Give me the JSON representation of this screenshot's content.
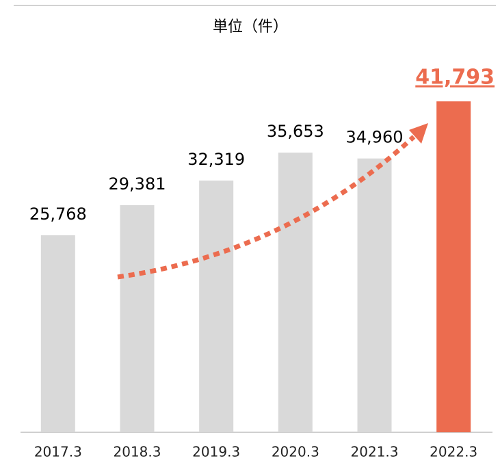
{
  "chart_data": {
    "type": "bar",
    "title": "単位（件）",
    "categories": [
      "2017.3",
      "2018.3",
      "2019.3",
      "2020.3",
      "2021.3",
      "2022.3"
    ],
    "values": [
      25768,
      29381,
      32319,
      35653,
      34960,
      41793
    ],
    "value_labels": [
      "25,768",
      "29,381",
      "32,319",
      "35,653",
      "34,960",
      "41,793"
    ],
    "colors": [
      "#d9d9d9",
      "#d9d9d9",
      "#d9d9d9",
      "#d9d9d9",
      "#d9d9d9",
      "#ec6c4f"
    ],
    "label_colors": [
      "#000000",
      "#000000",
      "#000000",
      "#000000",
      "#000000",
      "#ec6c4f"
    ],
    "ylim": [
      2200,
      45000
    ]
  }
}
